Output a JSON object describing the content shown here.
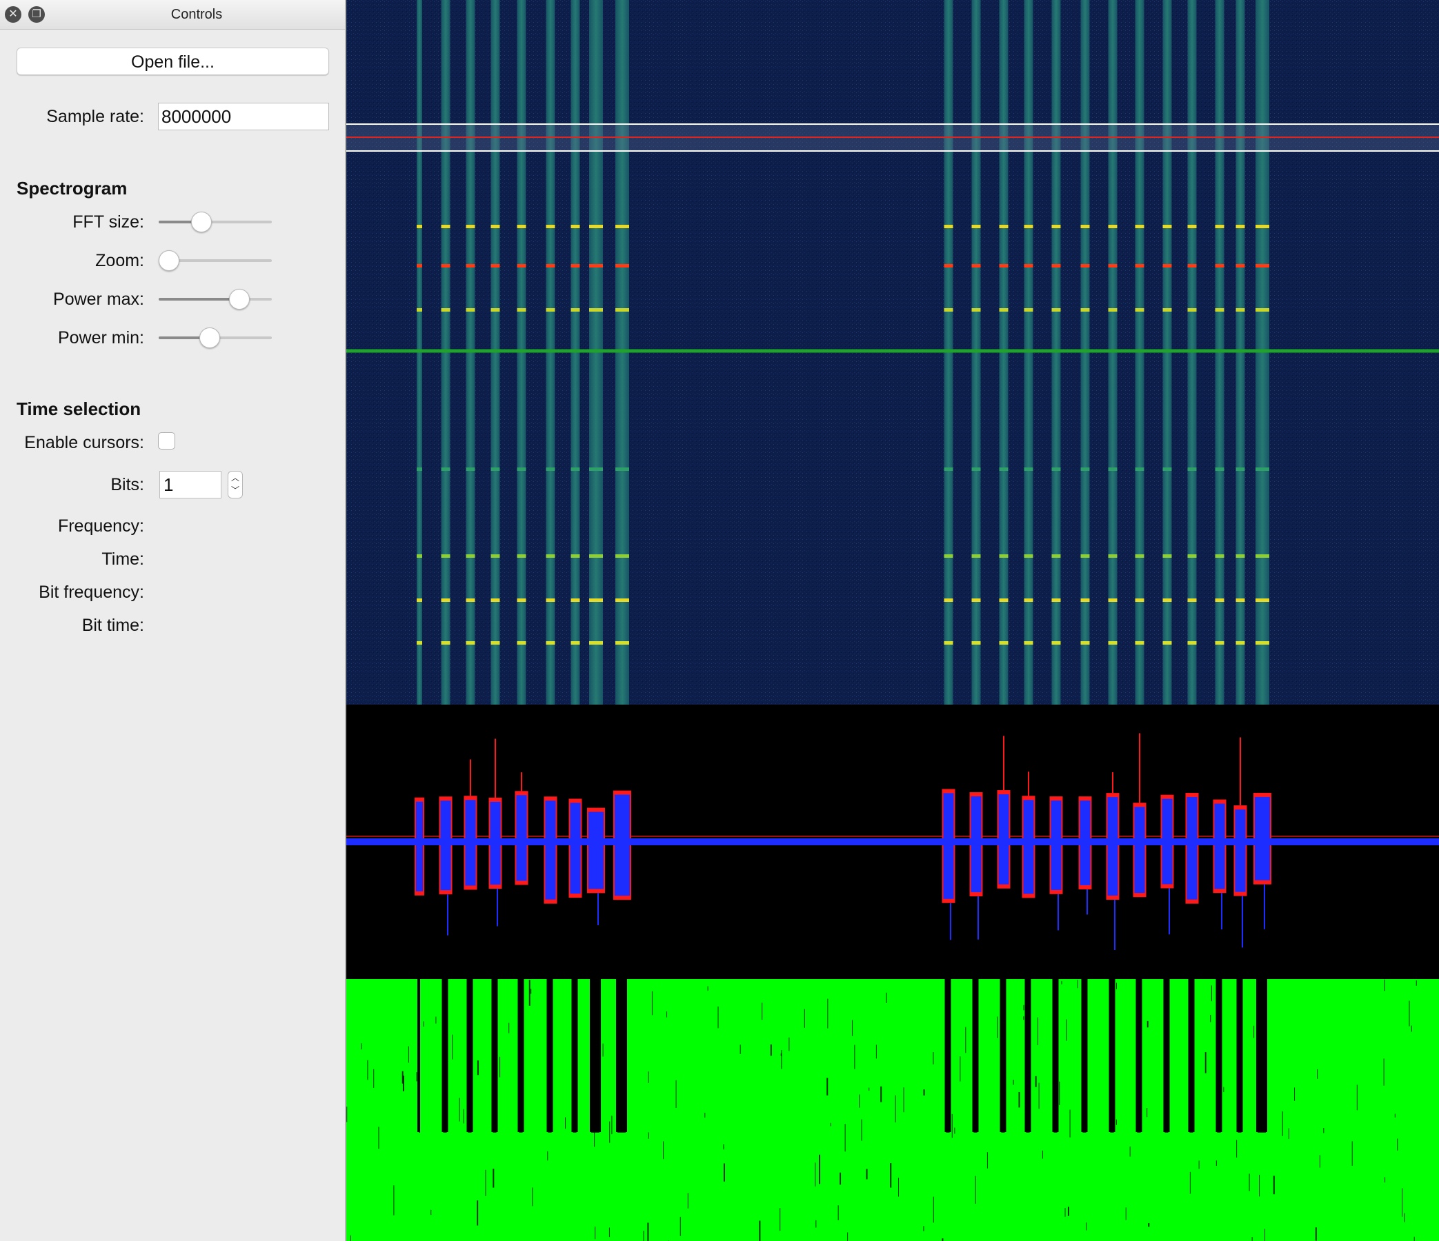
{
  "window": {
    "title": "Controls"
  },
  "controls": {
    "open_file_label": "Open file...",
    "sample_rate_label": "Sample rate:",
    "sample_rate_value": "8000000",
    "spectrogram_header": "Spectrogram",
    "fft_size_label": "FFT size:",
    "fft_size_level": 0.35,
    "zoom_label": "Zoom:",
    "zoom_level": 0.0,
    "power_max_label": "Power max:",
    "power_max_level": 0.76,
    "power_min_label": "Power min:",
    "power_min_level": 0.44,
    "time_selection_header": "Time selection",
    "enable_cursors_label": "Enable cursors:",
    "enable_cursors_checked": false,
    "bits_label": "Bits:",
    "bits_value": "1",
    "frequency_label": "Frequency:",
    "time_label": "Time:",
    "bit_frequency_label": "Bit frequency:",
    "bit_time_label": "Bit time:"
  },
  "colors": {
    "spectrogram_background": "#0d1e4a",
    "signal_band": "#1f6f6a",
    "tuning_line": "#e0241e",
    "center_line": "#1fa32a",
    "waveform_i": "#1e2dff",
    "waveform_q": "#ff1a1a",
    "threshold_fill": "#00ff00"
  }
}
